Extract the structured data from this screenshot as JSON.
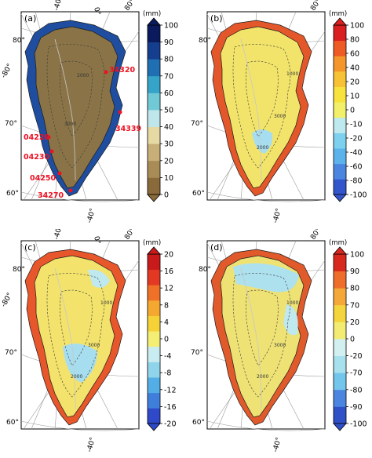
{
  "panels": [
    {
      "id": "a",
      "label": "(a)",
      "unit": "(mm)",
      "ticks": [
        "100",
        "90",
        "80",
        "70",
        "60",
        "50",
        "40",
        "30",
        "20",
        "10",
        "0"
      ],
      "tick_values": [
        100,
        90,
        80,
        70,
        60,
        50,
        40,
        30,
        20,
        10,
        0
      ],
      "scale_min": 0,
      "scale_max": 100,
      "color_stops": [
        "#8a6a3a",
        "#a88b55",
        "#c8ae77",
        "#e6d9a4",
        "#bfe6ea",
        "#72c9d6",
        "#36a3c8",
        "#1f6fb2",
        "#153e8f",
        "#0a1a5c"
      ],
      "land_fill": "#8a7447",
      "coast_fill": "#1f4ea0",
      "stations": [
        {
          "name": "34320",
          "lon": -22,
          "lat": 76.8
        },
        {
          "name": "34339",
          "lon": -18,
          "lat": 70.5
        },
        {
          "name": "04220",
          "lon": -53,
          "lat": 69.2
        },
        {
          "name": "04230",
          "lon": -52,
          "lat": 67.0
        },
        {
          "name": "04250",
          "lon": -51.7,
          "lat": 64.2
        },
        {
          "name": "34270",
          "lon": -45,
          "lat": 61.1
        }
      ],
      "contour_labels": [
        "2000",
        "3000"
      ]
    },
    {
      "id": "b",
      "label": "(b)",
      "unit": "(mm)",
      "ticks": [
        "100",
        "80",
        "60",
        "40",
        "20",
        "10",
        "0",
        "-10",
        "-20",
        "-40",
        "-60",
        "-80",
        "-100"
      ],
      "tick_values": [
        100,
        80,
        60,
        40,
        20,
        10,
        0,
        -10,
        -20,
        -40,
        -60,
        -80,
        -100
      ],
      "scale_min": -100,
      "scale_max": 100,
      "color_stops": [
        "#3355cc",
        "#4a86e0",
        "#5cb3ec",
        "#7dd0ee",
        "#bde9ef",
        "#f2f06a",
        "#f7e23e",
        "#f7c236",
        "#f4962b",
        "#ee5a24",
        "#d91f1f"
      ],
      "land_fill": "#f2e46a",
      "coast_fill": "#e4572a",
      "contour_labels": [
        "1000",
        "3000",
        "2000"
      ]
    },
    {
      "id": "c",
      "label": "(c)",
      "unit": "(mm)",
      "ticks": [
        "20",
        "16",
        "12",
        "8",
        "4",
        "0",
        "-4",
        "-8",
        "-12",
        "-16",
        "-20"
      ],
      "tick_values": [
        20,
        16,
        12,
        8,
        4,
        0,
        -4,
        -8,
        -12,
        -16,
        -20
      ],
      "scale_min": -20,
      "scale_max": 20,
      "color_stops": [
        "#2f49c8",
        "#3f7fdb",
        "#54aee6",
        "#8fd4ea",
        "#c9ecf0",
        "#f4ee75",
        "#f5d338",
        "#f4a830",
        "#ef7128",
        "#e33824",
        "#c81a1a"
      ],
      "land_fill": "#f3e36c",
      "coast_fill": "#e8562b",
      "contour_labels": [
        "1000",
        "3000",
        "2000"
      ]
    },
    {
      "id": "d",
      "label": "(d)",
      "unit": "(mm)",
      "ticks": [
        "100",
        "90",
        "80",
        "70",
        "20",
        "0",
        "-20",
        "-70",
        "-80",
        "-90",
        "-100"
      ],
      "tick_values": [
        100,
        90,
        80,
        70,
        20,
        0,
        -20,
        -70,
        -80,
        -90,
        -100
      ],
      "scale_min": -100,
      "scale_max": 100,
      "color_stops": [
        "#3050c8",
        "#4a86e0",
        "#72c6ec",
        "#a7e1ee",
        "#d2f0ef",
        "#f2ec72",
        "#f5d53e",
        "#f4a83a",
        "#ef6d2a",
        "#d8291f"
      ],
      "land_fill": "#eee275",
      "coast_fill": "#e05a2c",
      "contour_labels": [
        "1000",
        "3000",
        "2000"
      ]
    }
  ],
  "graticule": {
    "lon_labels": [
      "-80°",
      "-40°",
      "0°",
      "80°",
      "-40°"
    ],
    "lat_labels": [
      "80°",
      "70°",
      "60°"
    ]
  }
}
